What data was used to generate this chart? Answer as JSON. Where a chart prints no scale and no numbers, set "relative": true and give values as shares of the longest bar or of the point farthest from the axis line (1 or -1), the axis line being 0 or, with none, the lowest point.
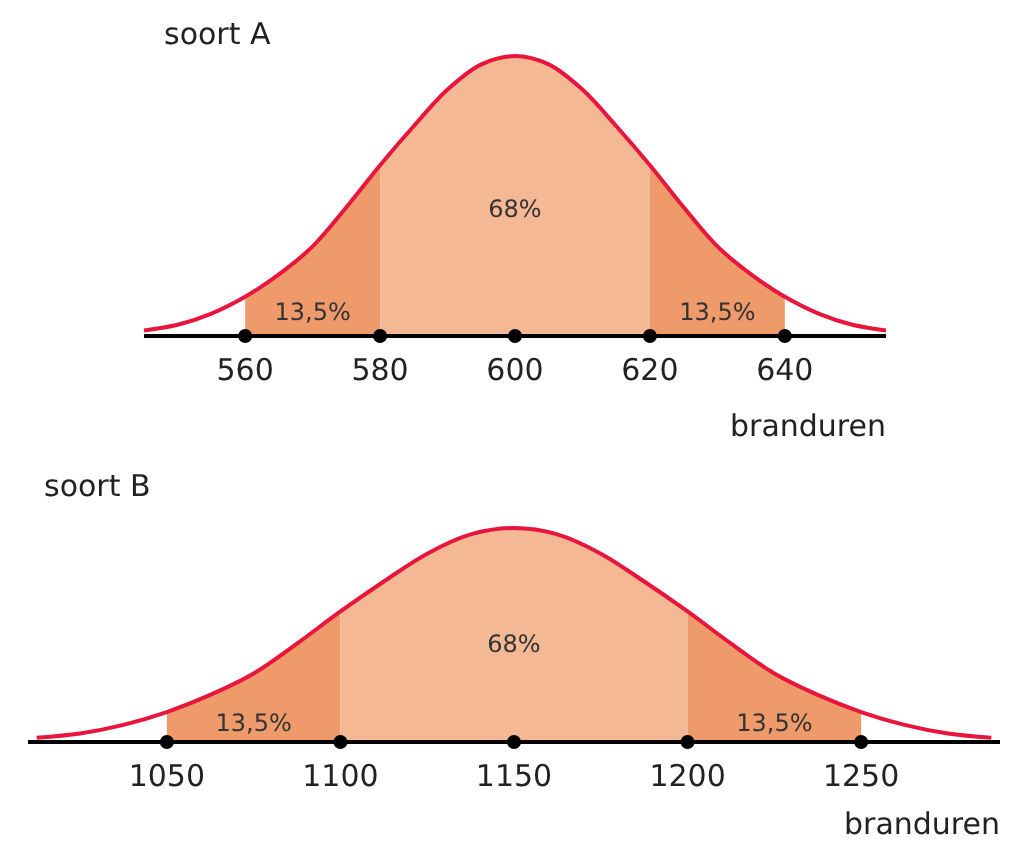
{
  "chart_data": [
    {
      "type": "line",
      "title": "soort A",
      "xlabel": "branduren",
      "relative": true,
      "xlim": [
        545,
        655
      ],
      "xticks": [
        560,
        580,
        600,
        620,
        640
      ],
      "x": [
        545,
        550,
        555,
        560,
        565,
        570,
        575,
        580,
        585,
        590,
        595,
        600,
        605,
        610,
        615,
        620,
        625,
        630,
        635,
        640,
        645,
        650,
        655
      ],
      "series": [
        {
          "color": "#e8163c",
          "values": [
            0.02,
            0.04,
            0.08,
            0.14,
            0.22,
            0.32,
            0.46,
            0.61,
            0.75,
            0.88,
            0.97,
            1,
            0.97,
            0.88,
            0.75,
            0.61,
            0.46,
            0.32,
            0.22,
            0.14,
            0.08,
            0.04,
            0.02
          ]
        }
      ],
      "bands": [
        {
          "axis": "x",
          "from": 560,
          "to": 580,
          "label": "13,5%",
          "color": "#ef9a6b"
        },
        {
          "axis": "x",
          "from": 580,
          "to": 620,
          "label": "68%",
          "color": "#f5b894"
        },
        {
          "axis": "x",
          "from": 620,
          "to": 640,
          "label": "13,5%",
          "color": "#ef9a6b"
        }
      ]
    },
    {
      "type": "line",
      "title": "soort B",
      "xlabel": "branduren",
      "relative": true,
      "xlim": [
        1010,
        1290
      ],
      "xticks": [
        1050,
        1100,
        1150,
        1200,
        1250
      ],
      "x": [
        1012.5,
        1025,
        1037.5,
        1050,
        1062.5,
        1075,
        1087.5,
        1100,
        1112.5,
        1125,
        1137.5,
        1150,
        1162.5,
        1175,
        1187.5,
        1200,
        1212.5,
        1225,
        1237.5,
        1250,
        1262.5,
        1275,
        1287.5
      ],
      "series": [
        {
          "color": "#e8163c",
          "values": [
            0.02,
            0.04,
            0.08,
            0.14,
            0.22,
            0.32,
            0.46,
            0.61,
            0.75,
            0.88,
            0.97,
            1,
            0.97,
            0.88,
            0.75,
            0.61,
            0.46,
            0.32,
            0.22,
            0.14,
            0.08,
            0.04,
            0.02
          ]
        }
      ],
      "bands": [
        {
          "axis": "x",
          "from": 1050,
          "to": 1100,
          "label": "13,5%",
          "color": "#ef9a6b"
        },
        {
          "axis": "x",
          "from": 1100,
          "to": 1200,
          "label": "68%",
          "color": "#f5b894"
        },
        {
          "axis": "x",
          "from": 1200,
          "to": 1250,
          "label": "13,5%",
          "color": "#ef9a6b"
        }
      ]
    }
  ]
}
